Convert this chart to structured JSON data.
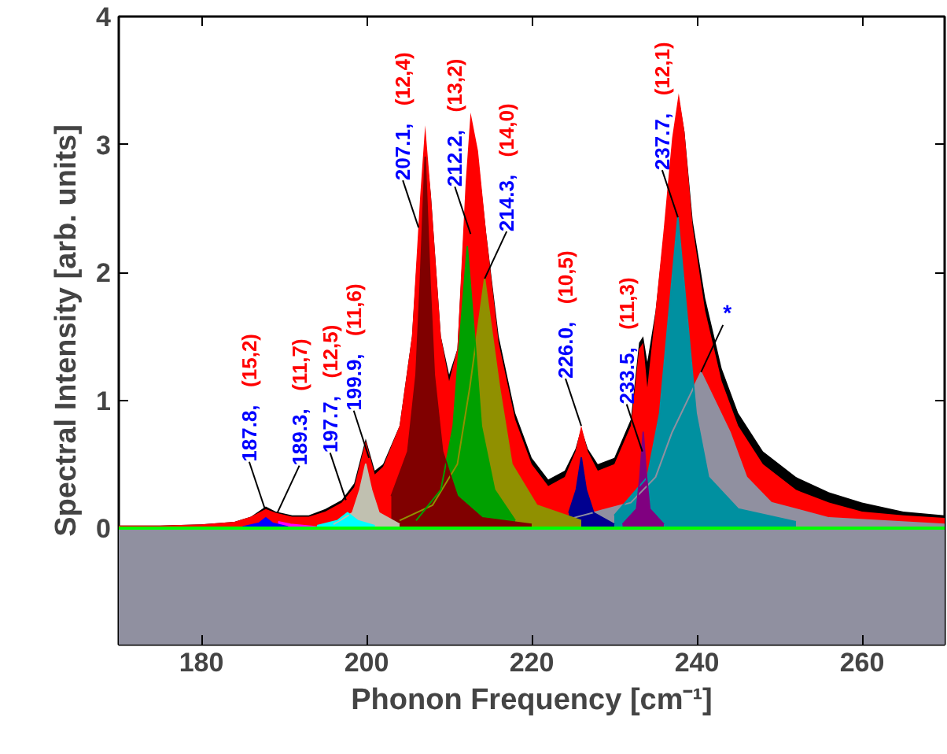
{
  "chart_data": {
    "type": "area",
    "xlabel": "Phonon Frequency [cm⁻¹]",
    "ylabel": "Spectral Intensity [arb. units]",
    "xlim": [
      170,
      270
    ],
    "xticks": [
      180,
      200,
      220,
      240,
      260
    ],
    "ylim": [
      -0.91,
      4
    ],
    "yticks": [
      0,
      1,
      2,
      3,
      4
    ],
    "grid": false,
    "bands": [
      {
        "axis": "y",
        "from": -0.91,
        "to": 0,
        "color": "#9090a0"
      }
    ],
    "ref_lines": [
      {
        "axis": "y",
        "value": 0,
        "color": "#00ff00"
      }
    ],
    "series": [
      {
        "color": "#000000",
        "x": [
          170,
          175,
          180,
          184,
          186,
          187.8,
          189,
          191,
          193,
          195,
          197,
          198.5,
          199.9,
          201,
          202,
          204,
          205.5,
          206.5,
          207.1,
          207.8,
          209,
          210,
          211,
          212,
          212.6,
          213.5,
          214.5,
          216,
          218,
          220,
          222,
          224,
          225.3,
          226,
          226.8,
          228,
          230,
          232,
          233,
          233.5,
          234,
          235,
          236,
          237,
          237.8,
          238.5,
          239.5,
          241,
          243,
          245,
          248,
          252,
          256,
          260,
          265,
          270
        ],
        "values": [
          0.02,
          0.02,
          0.03,
          0.05,
          0.09,
          0.17,
          0.13,
          0.1,
          0.1,
          0.15,
          0.22,
          0.35,
          0.7,
          0.45,
          0.5,
          0.8,
          1.5,
          2.5,
          3.05,
          2.6,
          1.5,
          1.2,
          1.4,
          2.6,
          3.15,
          2.9,
          2.3,
          1.5,
          0.9,
          0.55,
          0.38,
          0.45,
          0.62,
          0.78,
          0.62,
          0.5,
          0.55,
          0.85,
          1.45,
          1.5,
          1.3,
          1.7,
          2.3,
          3.0,
          3.37,
          3.1,
          2.4,
          1.8,
          1.25,
          0.9,
          0.6,
          0.4,
          0.28,
          0.2,
          0.13,
          0.1
        ]
      },
      {
        "color": "#ff0000",
        "x": [
          170,
          175,
          180,
          184,
          186,
          187.8,
          189,
          191,
          193,
          195,
          197,
          198.5,
          199.9,
          201,
          202,
          204,
          205.5,
          206.5,
          207.1,
          207.8,
          209,
          210,
          211,
          212,
          212.6,
          213.5,
          214.5,
          216,
          218,
          220,
          222,
          224,
          225.3,
          226,
          226.8,
          228,
          230,
          232,
          233,
          233.5,
          234,
          235,
          236,
          237,
          237.8,
          238.5,
          239.5,
          241,
          243,
          245,
          248,
          252,
          256,
          260,
          265,
          270
        ],
        "values": [
          0.02,
          0.02,
          0.03,
          0.05,
          0.09,
          0.15,
          0.12,
          0.09,
          0.09,
          0.13,
          0.2,
          0.32,
          0.68,
          0.42,
          0.48,
          0.8,
          1.5,
          2.6,
          3.15,
          2.6,
          1.5,
          1.15,
          1.4,
          2.7,
          3.25,
          2.95,
          2.3,
          1.45,
          0.85,
          0.5,
          0.33,
          0.4,
          0.6,
          0.8,
          0.6,
          0.45,
          0.5,
          0.8,
          1.4,
          1.45,
          1.1,
          1.7,
          2.35,
          3.05,
          3.4,
          3.1,
          2.35,
          1.7,
          1.15,
          0.8,
          0.5,
          0.3,
          0.2,
          0.13,
          0.1,
          0.08
        ]
      },
      {
        "color": "#9090a0",
        "x": [
          225,
          232,
          235,
          237,
          240.5,
          244,
          246,
          249,
          256,
          270
        ],
        "values": [
          0.08,
          0.2,
          0.4,
          0.75,
          1.22,
          0.75,
          0.4,
          0.2,
          0.08,
          0.03
        ]
      },
      {
        "color": "#0090a0",
        "x": [
          230,
          234,
          235.5,
          236.5,
          237.7,
          238.9,
          239.9,
          241.4,
          245,
          252
        ],
        "values": [
          0.1,
          0.4,
          0.9,
          1.6,
          2.43,
          1.6,
          0.9,
          0.4,
          0.15,
          0.05
        ]
      },
      {
        "color": "#800080",
        "x": [
          231,
          232.7,
          233.1,
          233.5,
          233.9,
          234.3,
          236
        ],
        "values": [
          0.03,
          0.15,
          0.4,
          0.75,
          0.4,
          0.15,
          0.03
        ]
      },
      {
        "color": "#000090",
        "x": [
          224.5,
          225.4,
          226,
          226.6,
          227.5,
          230
        ],
        "values": [
          0.12,
          0.3,
          0.55,
          0.3,
          0.12,
          0.03
        ]
      },
      {
        "color": "#909000",
        "x": [
          204,
          208,
          211,
          212.5,
          214.3,
          216.1,
          217.6,
          220.6,
          226
        ],
        "values": [
          0.06,
          0.18,
          0.5,
          1.1,
          1.95,
          1.1,
          0.5,
          0.18,
          0.06
        ]
      },
      {
        "color": "#00a000",
        "x": [
          206,
          209,
          210.5,
          211.2,
          212.2,
          213.2,
          213.9,
          215.5,
          218
        ],
        "values": [
          0.06,
          0.3,
          0.8,
          1.4,
          2.2,
          1.4,
          0.8,
          0.3,
          0.06
        ]
      },
      {
        "color": "#800000",
        "x": [
          203,
          205,
          206,
          206.5,
          207.1,
          207.7,
          208.2,
          209.2,
          211,
          214,
          220
        ],
        "values": [
          0.25,
          0.6,
          1.2,
          1.9,
          2.9,
          1.9,
          1.2,
          0.6,
          0.25,
          0.08,
          0.03
        ]
      },
      {
        "color": "#c0c0b0",
        "x": [
          196,
          198.3,
          199.2,
          199.9,
          200.6,
          201.5,
          204
        ],
        "values": [
          0.03,
          0.12,
          0.3,
          0.5,
          0.3,
          0.12,
          0.03
        ]
      },
      {
        "color": "#00ffff",
        "x": [
          194,
          196.5,
          197.7,
          198.9,
          201
        ],
        "values": [
          0.02,
          0.06,
          0.12,
          0.06,
          0.02
        ]
      },
      {
        "color": "#ff00ff",
        "x": [
          189.3,
          190.8,
          194
        ],
        "values": [
          0.05,
          0.03,
          0.01
        ]
      },
      {
        "color": "#0000ff",
        "x": [
          185,
          187,
          187.8,
          188.6,
          190.5
        ],
        "values": [
          0.01,
          0.04,
          0.08,
          0.04,
          0.01
        ]
      }
    ],
    "annotations": [
      {
        "text": "187.8, (15,2)",
        "x": 187.7,
        "y": 0.15
      },
      {
        "text": "189.3, (11,7)",
        "x": 189.2,
        "y": 0.12
      },
      {
        "text": "197.7, (12,5)",
        "x": 197.5,
        "y": 0.22
      },
      {
        "text": "199.9, (11,6)",
        "x": 200.3,
        "y": 0.55
      },
      {
        "text": "207.1, (12,4)",
        "x": 206.3,
        "y": 2.35
      },
      {
        "text": "212.2, (13,2)",
        "x": 212.6,
        "y": 2.3
      },
      {
        "text": "214.3, (14,0)",
        "x": 214.3,
        "y": 1.95
      },
      {
        "text": "226.0, (10,5)",
        "x": 226.0,
        "y": 0.8
      },
      {
        "text": "233.5, (11,3)",
        "x": 233.4,
        "y": 0.6
      },
      {
        "text": "237.7, (12,1)",
        "x": 237.7,
        "y": 2.43
      },
      {
        "text": "*",
        "x": 240.5,
        "y": 1.22
      }
    ]
  }
}
